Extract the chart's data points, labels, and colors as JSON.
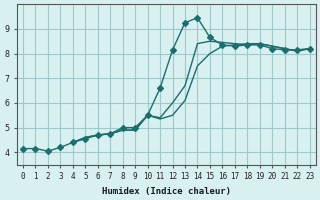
{
  "xlabel": "Humidex (Indice chaleur)",
  "ylabel": "",
  "bg_color": "#d8f0f0",
  "grid_color": "#a0c8c8",
  "line_color": "#1a6e6e",
  "xlim": [
    -0.5,
    23.5
  ],
  "ylim": [
    3.5,
    10.0
  ],
  "xticks": [
    0,
    1,
    2,
    3,
    4,
    5,
    6,
    7,
    8,
    9,
    10,
    11,
    12,
    13,
    14,
    15,
    16,
    17,
    18,
    19,
    20,
    21,
    22,
    23
  ],
  "yticks": [
    4,
    5,
    6,
    7,
    8,
    9
  ],
  "curves": [
    {
      "x": [
        0,
        1,
        2,
        3,
        4,
        5,
        6,
        7,
        8,
        9,
        10,
        11,
        12,
        13,
        14,
        15,
        16,
        17,
        18,
        19,
        20,
        21,
        22,
        23
      ],
      "y": [
        4.15,
        4.15,
        4.05,
        4.2,
        4.4,
        4.55,
        4.7,
        4.75,
        5.0,
        5.0,
        5.5,
        6.6,
        8.15,
        9.25,
        9.45,
        8.65,
        8.35,
        8.3,
        8.35,
        8.35,
        8.2,
        8.15,
        8.15,
        8.2
      ],
      "has_marker": true,
      "marker": "D",
      "markersize": 3
    },
    {
      "x": [
        4,
        5,
        6,
        7,
        8,
        9,
        10,
        11,
        12,
        13,
        14,
        15,
        16,
        17,
        18,
        19,
        20,
        21,
        22,
        23
      ],
      "y": [
        4.4,
        4.6,
        4.7,
        4.75,
        4.9,
        4.9,
        5.5,
        5.4,
        6.0,
        6.7,
        8.4,
        8.5,
        8.45,
        8.4,
        8.35,
        8.4,
        8.3,
        8.2,
        8.1,
        8.2
      ],
      "has_marker": false,
      "marker": "",
      "markersize": 0
    },
    {
      "x": [
        4,
        5,
        6,
        7,
        8,
        9,
        10,
        11,
        12,
        13,
        14,
        15,
        16,
        17,
        18,
        19,
        20,
        21,
        22,
        23
      ],
      "y": [
        4.4,
        4.6,
        4.7,
        4.75,
        4.9,
        4.9,
        5.5,
        5.35,
        5.5,
        6.1,
        7.5,
        8.0,
        8.3,
        8.35,
        8.4,
        8.4,
        8.3,
        8.2,
        8.1,
        8.2
      ],
      "has_marker": false,
      "marker": "",
      "markersize": 0
    }
  ]
}
